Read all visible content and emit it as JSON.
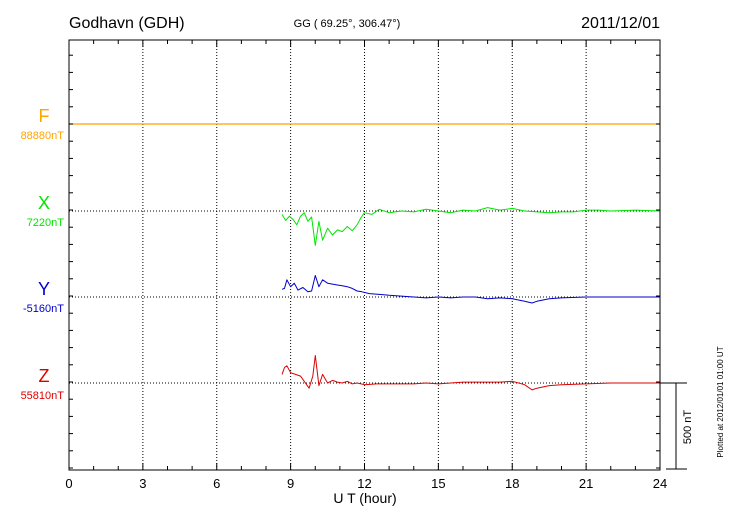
{
  "header": {
    "station": "Godhavn (GDH)",
    "coords": "GG ( 69.25°, 306.47°)",
    "date": "2011/12/01"
  },
  "plot_note": "Plotted at 2012/01/01 01:00 UT",
  "scale_label": "500 nT",
  "chart_data": {
    "type": "line",
    "title": "Godhavn (GDH)",
    "xlabel": "U T (hour)",
    "ylabel": "",
    "xlim": [
      0,
      24
    ],
    "xticks": [
      0,
      3,
      6,
      9,
      12,
      15,
      18,
      21,
      24
    ],
    "grid": true,
    "scale_bar_nT": 500,
    "colors": {
      "F": "#ffa500",
      "X": "#00e600",
      "Y": "#0000cc",
      "Z": "#dd0000"
    },
    "series": [
      {
        "name": "F",
        "baseline_label": "88880nT",
        "baseline_nT": 88880,
        "color": "#ffa500",
        "points": [
          [
            0,
            0
          ],
          [
            24,
            0
          ]
        ]
      },
      {
        "name": "X",
        "baseline_label": "7220nT",
        "baseline_nT": 7220,
        "color": "#00e600",
        "points": [
          [
            8.65,
            -20
          ],
          [
            8.8,
            -55
          ],
          [
            8.95,
            -30
          ],
          [
            9.1,
            -50
          ],
          [
            9.25,
            -80
          ],
          [
            9.4,
            -30
          ],
          [
            9.55,
            -10
          ],
          [
            9.7,
            -60
          ],
          [
            9.85,
            -35
          ],
          [
            10.0,
            -200
          ],
          [
            10.15,
            -60
          ],
          [
            10.3,
            -170
          ],
          [
            10.5,
            -100
          ],
          [
            10.7,
            -140
          ],
          [
            10.9,
            -110
          ],
          [
            11.1,
            -120
          ],
          [
            11.3,
            -90
          ],
          [
            11.5,
            -115
          ],
          [
            11.7,
            -80
          ],
          [
            11.85,
            -40
          ],
          [
            12.0,
            -10
          ],
          [
            12.3,
            -20
          ],
          [
            12.6,
            10
          ],
          [
            13.0,
            -10
          ],
          [
            13.5,
            0
          ],
          [
            14.0,
            -5
          ],
          [
            14.5,
            10
          ],
          [
            15.0,
            0
          ],
          [
            15.5,
            -10
          ],
          [
            16.0,
            5
          ],
          [
            16.5,
            0
          ],
          [
            17.0,
            20
          ],
          [
            17.5,
            5
          ],
          [
            18.0,
            15
          ],
          [
            18.5,
            0
          ],
          [
            19.0,
            -5
          ],
          [
            19.5,
            -10
          ],
          [
            20.0,
            -5
          ],
          [
            20.5,
            -5
          ],
          [
            21.0,
            5
          ],
          [
            21.5,
            5
          ],
          [
            22.0,
            0
          ],
          [
            23.0,
            5
          ],
          [
            24.0,
            0
          ]
        ]
      },
      {
        "name": "Y",
        "baseline_label": "-5160nT",
        "baseline_nT": -5160,
        "color": "#0000cc",
        "points": [
          [
            8.65,
            45
          ],
          [
            8.75,
            50
          ],
          [
            8.85,
            100
          ],
          [
            9.0,
            60
          ],
          [
            9.15,
            80
          ],
          [
            9.3,
            40
          ],
          [
            9.5,
            55
          ],
          [
            9.7,
            30
          ],
          [
            9.85,
            35
          ],
          [
            10.0,
            125
          ],
          [
            10.15,
            60
          ],
          [
            10.3,
            100
          ],
          [
            10.5,
            80
          ],
          [
            10.7,
            75
          ],
          [
            10.9,
            70
          ],
          [
            11.1,
            65
          ],
          [
            11.3,
            60
          ],
          [
            11.5,
            50
          ],
          [
            11.7,
            35
          ],
          [
            11.9,
            30
          ],
          [
            12.2,
            20
          ],
          [
            12.6,
            15
          ],
          [
            13.0,
            10
          ],
          [
            13.5,
            5
          ],
          [
            14.0,
            0
          ],
          [
            14.5,
            -5
          ],
          [
            15.0,
            0
          ],
          [
            15.5,
            -5
          ],
          [
            16.0,
            0
          ],
          [
            16.5,
            0
          ],
          [
            17.0,
            -10
          ],
          [
            17.5,
            -5
          ],
          [
            18.0,
            -10
          ],
          [
            18.5,
            -25
          ],
          [
            18.8,
            -35
          ],
          [
            19.0,
            -25
          ],
          [
            19.5,
            -10
          ],
          [
            20.0,
            -5
          ],
          [
            21.0,
            0
          ],
          [
            22.0,
            0
          ],
          [
            23.0,
            0
          ],
          [
            24.0,
            0
          ]
        ]
      },
      {
        "name": "Z",
        "baseline_label": "55810nT",
        "baseline_nT": 55810,
        "color": "#dd0000",
        "points": [
          [
            8.65,
            50
          ],
          [
            8.75,
            90
          ],
          [
            8.85,
            100
          ],
          [
            9.0,
            60
          ],
          [
            9.2,
            50
          ],
          [
            9.4,
            40
          ],
          [
            9.6,
            0
          ],
          [
            9.75,
            -30
          ],
          [
            9.9,
            40
          ],
          [
            10.0,
            160
          ],
          [
            10.15,
            -15
          ],
          [
            10.3,
            50
          ],
          [
            10.5,
            0
          ],
          [
            10.7,
            15
          ],
          [
            10.9,
            5
          ],
          [
            11.1,
            0
          ],
          [
            11.3,
            10
          ],
          [
            11.5,
            -5
          ],
          [
            11.7,
            0
          ],
          [
            12.0,
            -10
          ],
          [
            12.5,
            -5
          ],
          [
            13.0,
            -5
          ],
          [
            13.5,
            -5
          ],
          [
            14.0,
            -5
          ],
          [
            14.5,
            0
          ],
          [
            15.0,
            -5
          ],
          [
            15.5,
            0
          ],
          [
            16.0,
            5
          ],
          [
            16.5,
            5
          ],
          [
            17.0,
            5
          ],
          [
            17.5,
            5
          ],
          [
            18.0,
            10
          ],
          [
            18.5,
            -10
          ],
          [
            18.8,
            -40
          ],
          [
            19.0,
            -30
          ],
          [
            19.5,
            -15
          ],
          [
            20.0,
            -10
          ],
          [
            21.0,
            -5
          ],
          [
            22.0,
            0
          ],
          [
            23.0,
            0
          ],
          [
            24.0,
            0
          ]
        ]
      }
    ]
  }
}
